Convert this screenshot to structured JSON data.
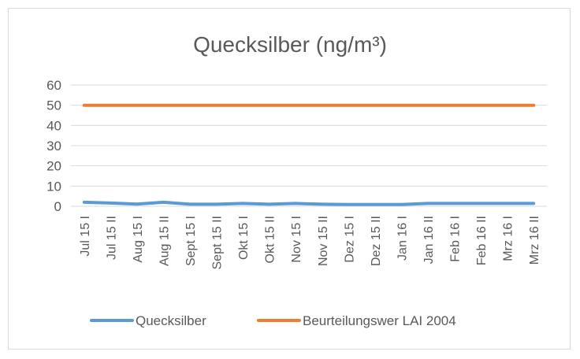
{
  "chart_data": {
    "type": "line",
    "title": "Quecksilber (ng/m³)",
    "xlabel": "",
    "ylabel": "",
    "ylim": [
      0,
      60
    ],
    "yticks": [
      "0",
      "10",
      "20",
      "30",
      "40",
      "50",
      "60"
    ],
    "grid": true,
    "legend_position": "bottom",
    "categories": [
      "Jul 15 I",
      "Jul 15 II",
      "Aug 15 I",
      "Aug 15 II",
      "Sept 15 I",
      "Sept 15 II",
      "Okt 15 I",
      "Okt 15 II",
      "Nov 15 I",
      "Nov 15 II",
      "Dez 15 I",
      "Dez 15 II",
      "Jan 16 I",
      "Jan 16 II",
      "Feb 16 I",
      "Feb 16 II",
      "Mrz 16 I",
      "Mrz 16 II"
    ],
    "series": [
      {
        "name": "Quecksilber",
        "color": "#5b9bd5",
        "values": [
          2.0,
          1.6,
          1.1,
          2.0,
          1.0,
          1.0,
          1.4,
          1.0,
          1.4,
          1.0,
          0.9,
          0.9,
          0.9,
          1.4,
          1.4,
          1.4,
          1.4,
          1.4
        ]
      },
      {
        "name": "Beurteilungswer LAI 2004",
        "color": "#ed7d31",
        "values": [
          50,
          50,
          50,
          50,
          50,
          50,
          50,
          50,
          50,
          50,
          50,
          50,
          50,
          50,
          50,
          50,
          50,
          50
        ]
      }
    ]
  }
}
